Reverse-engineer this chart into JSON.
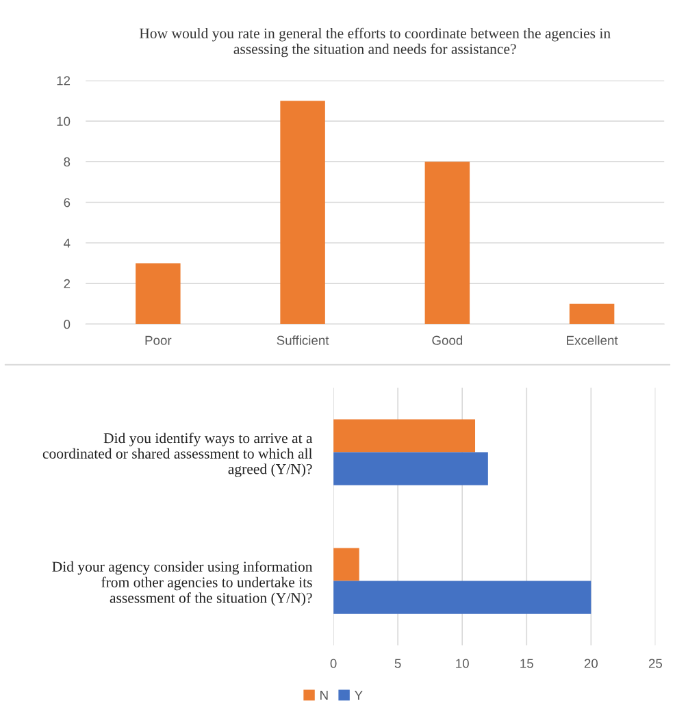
{
  "chart_data": [
    {
      "type": "bar",
      "title": "How would you rate in general the efforts to coordinate between the agencies in\nassessing the situation and needs for assistance?",
      "categories": [
        "Poor",
        "Sufficient",
        "Good",
        "Excellent"
      ],
      "values": [
        3,
        11,
        8,
        1
      ],
      "color": "#ed7d31",
      "ylim": [
        0,
        12
      ],
      "yticks": [
        0,
        2,
        4,
        6,
        8,
        10,
        12
      ],
      "grid": "y",
      "legend": false
    },
    {
      "type": "bar",
      "orientation": "horizontal",
      "categories": [
        "Did you identify ways to arrive at a\ncoordinated or shared assessment to which all\nagreed (Y/N)?",
        "Did your agency consider using information\nfrom other agencies to undertake its\nassessment of the situation (Y/N)?"
      ],
      "series": [
        {
          "name": "N",
          "color": "#ed7d31",
          "values": [
            11,
            2
          ]
        },
        {
          "name": "Y",
          "color": "#4472c4",
          "values": [
            12,
            20
          ]
        }
      ],
      "xlim": [
        0,
        25
      ],
      "xticks": [
        0,
        5,
        10,
        15,
        20,
        25
      ],
      "grid": "x",
      "legend": "bottom"
    }
  ]
}
